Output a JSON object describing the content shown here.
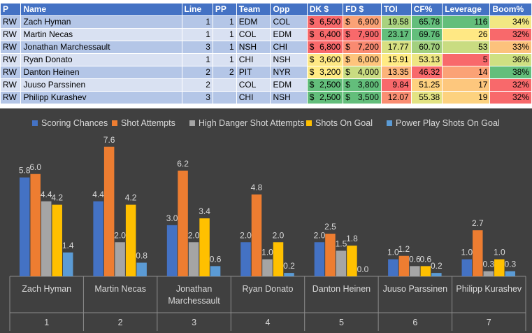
{
  "table": {
    "headers": [
      "P",
      "Name",
      "Line",
      "PP",
      "Team",
      "Opp",
      "DK $",
      "FD $",
      "TOI",
      "CF%",
      "Leverage",
      "Boom%"
    ],
    "rows": [
      {
        "p": "RW",
        "name": "Zach Hyman",
        "line": "1",
        "pp": "1",
        "team": "EDM",
        "opp": "COL",
        "dk": "6,500",
        "fd": "6,900",
        "toi": "19.58",
        "cf": "65.78",
        "lev": "116",
        "boom": "34%",
        "dk_color": "#f8696b",
        "fd_color": "#fba276",
        "toi_color": "#a9d27f",
        "cf_color": "#63be7b",
        "lev_color": "#63be7b",
        "boom_color": "#f2e883"
      },
      {
        "p": "RW",
        "name": "Martin Necas",
        "line": "1",
        "pp": "1",
        "team": "COL",
        "opp": "EDM",
        "dk": "6,400",
        "fd": "7,900",
        "toi": "23.17",
        "cf": "69.76",
        "lev": "26",
        "boom": "32%",
        "dk_color": "#f8696b",
        "fd_color": "#f8696b",
        "toi_color": "#63be7b",
        "cf_color": "#63be7b",
        "lev_color": "#ffe884",
        "boom_color": "#f8696b"
      },
      {
        "p": "RW",
        "name": "Jonathan Marchessault",
        "line": "3",
        "pp": "1",
        "team": "NSH",
        "opp": "CHI",
        "dk": "6,800",
        "fd": "7,200",
        "toi": "17.77",
        "cf": "60.70",
        "lev": "53",
        "boom": "33%",
        "dk_color": "#f8696b",
        "fd_color": "#f98a71",
        "toi_color": "#d7df81",
        "cf_color": "#a3d07f",
        "lev_color": "#c9dc81",
        "boom_color": "#fcc27c"
      },
      {
        "p": "RW",
        "name": "Ryan Donato",
        "line": "1",
        "pp": "1",
        "team": "CHI",
        "opp": "NSH",
        "dk": "3,600",
        "fd": "6,000",
        "toi": "15.91",
        "cf": "53.13",
        "lev": "5",
        "boom": "36%",
        "dk_color": "#ffe884",
        "fd_color": "#fec47c",
        "toi_color": "#ffeb84",
        "cf_color": "#eee683",
        "lev_color": "#f8696b",
        "boom_color": "#cfe082"
      },
      {
        "p": "RW",
        "name": "Danton Heinen",
        "line": "2",
        "pp": "2",
        "team": "PIT",
        "opp": "NYR",
        "dk": "3,200",
        "fd": "4,000",
        "toi": "13.35",
        "cf": "46.32",
        "lev": "14",
        "boom": "38%",
        "dk_color": "#ffeb84",
        "fd_color": "#c9dc81",
        "toi_color": "#fcb479",
        "cf_color": "#f8696b",
        "lev_color": "#fba276",
        "boom_color": "#63be7b"
      },
      {
        "p": "RW",
        "name": "Juuso Parssinen",
        "line": "2",
        "pp": "",
        "team": "COL",
        "opp": "EDM",
        "dk": "2,500",
        "fd": "3,800",
        "toi": "9.84",
        "cf": "51.25",
        "lev": "17",
        "boom": "32%",
        "dk_color": "#63be7b",
        "fd_color": "#63be7b",
        "toi_color": "#f8696b",
        "cf_color": "#fed17f",
        "lev_color": "#fdc77d",
        "boom_color": "#f8696b"
      },
      {
        "p": "RW",
        "name": "Philipp Kurashev",
        "line": "3",
        "pp": "",
        "team": "CHI",
        "opp": "NSH",
        "dk": "2,500",
        "fd": "3,500",
        "toi": "12.07",
        "cf": "55.38",
        "lev": "19",
        "boom": "32%",
        "dk_color": "#63be7b",
        "fd_color": "#63be7b",
        "toi_color": "#fa8e72",
        "cf_color": "#e3e383",
        "lev_color": "#fdd27f",
        "boom_color": "#f8696b"
      }
    ]
  },
  "chart_data": {
    "type": "bar",
    "title": "",
    "xlabel": "",
    "ylabel": "",
    "ylim": [
      0,
      8
    ],
    "grid": false,
    "legend_position": "top",
    "categories": [
      "Zach Hyman",
      "Martin Necas",
      "Jonathan Marchessault",
      "Ryan Donato",
      "Danton Heinen",
      "Juuso Parssinen",
      "Philipp Kurashev"
    ],
    "category_numbers": [
      "1",
      "2",
      "3",
      "4",
      "5",
      "6",
      "7"
    ],
    "series": [
      {
        "name": "Scoring Chances",
        "color": "#4472c4",
        "values": [
          5.8,
          4.4,
          3.0,
          2.0,
          2.0,
          1.0,
          1.0
        ]
      },
      {
        "name": "Shot Attempts",
        "color": "#ed7d31",
        "values": [
          6.0,
          7.6,
          6.2,
          4.8,
          2.5,
          1.2,
          2.7
        ]
      },
      {
        "name": "High Danger Shot Attempts",
        "color": "#a5a5a5",
        "values": [
          4.4,
          2.0,
          2.0,
          1.0,
          1.5,
          0.6,
          0.3
        ]
      },
      {
        "name": "Shots On Goal",
        "color": "#ffc000",
        "values": [
          4.2,
          4.2,
          3.4,
          2.0,
          1.8,
          0.6,
          1.0
        ]
      },
      {
        "name": "Power Play Shots On Goal",
        "color": "#5b9bd5",
        "values": [
          1.4,
          0.8,
          0.6,
          0.2,
          0.0,
          0.2,
          0.3
        ]
      }
    ],
    "value_labels": [
      [
        "5.8",
        "4.4",
        "3.0",
        "2.0",
        "2.0",
        "1.0",
        "1.0"
      ],
      [
        "6.0",
        "7.6",
        "6.2",
        "4.8",
        "2.5",
        "1.2",
        "2.7"
      ],
      [
        "4.4",
        "2.0",
        "2.0",
        "1.0",
        "1.5",
        "0.6",
        "0.3"
      ],
      [
        "4.2",
        "4.2",
        "3.4",
        "2.0",
        "1.8",
        "0.6",
        "1.0"
      ],
      [
        "1.4",
        "0.8",
        "0.6",
        "0.2",
        "0.0",
        "0.2",
        "0.3"
      ]
    ]
  }
}
